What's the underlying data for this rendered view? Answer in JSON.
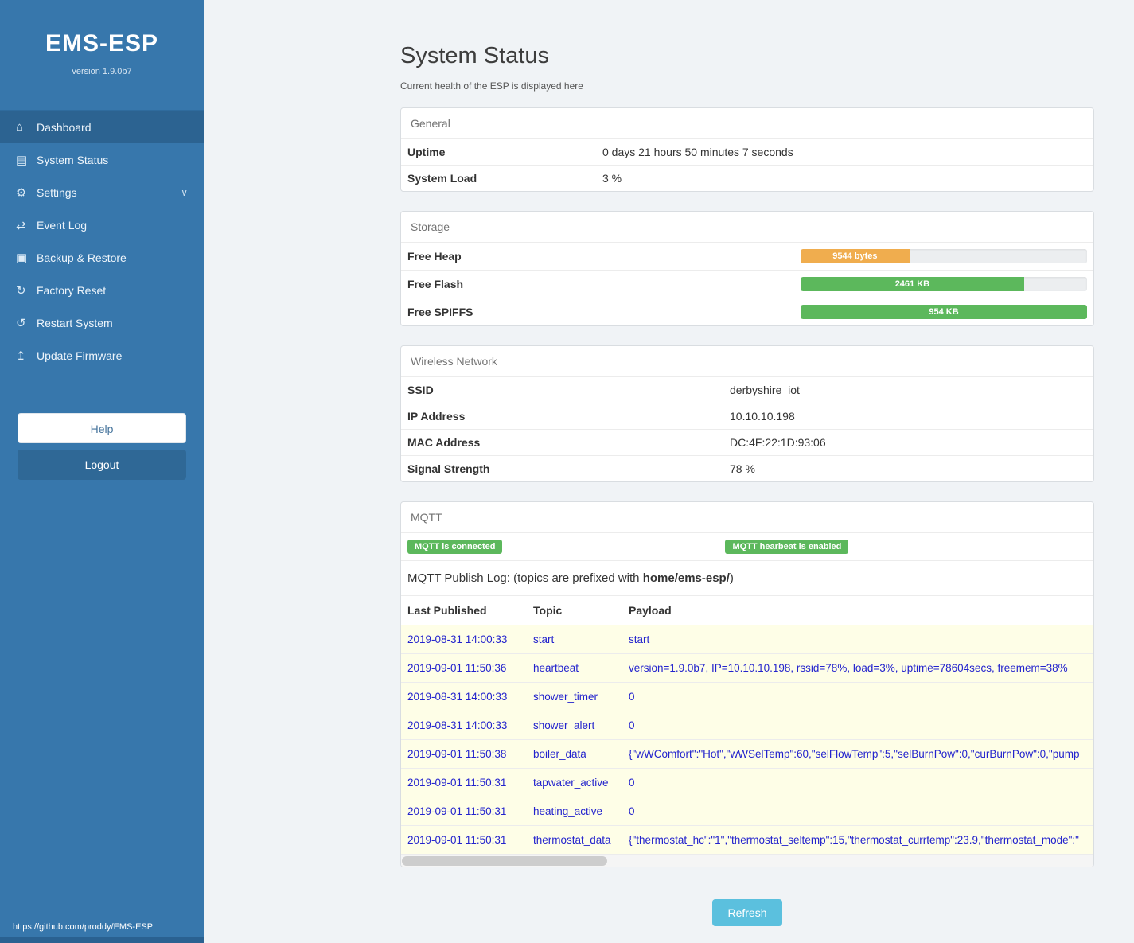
{
  "sidebar": {
    "title": "EMS-ESP",
    "version": "version 1.9.0b7",
    "items": [
      {
        "label": "Dashboard",
        "icon": "⌂",
        "active": true
      },
      {
        "label": "System Status",
        "icon": "▤",
        "active": false
      },
      {
        "label": "Settings",
        "icon": "⚙",
        "chevron": "∨",
        "active": false
      },
      {
        "label": "Event Log",
        "icon": "⇄",
        "active": false
      },
      {
        "label": "Backup & Restore",
        "icon": "▣",
        "active": false
      },
      {
        "label": "Factory Reset",
        "icon": "↻",
        "active": false
      },
      {
        "label": "Restart System",
        "icon": "↺",
        "active": false
      },
      {
        "label": "Update Firmware",
        "icon": "↥",
        "active": false
      }
    ],
    "help_label": "Help",
    "logout_label": "Logout",
    "footer_link": "https://github.com/proddy/EMS-ESP"
  },
  "page": {
    "title": "System Status",
    "subtitle": "Current health of the ESP is displayed here",
    "refresh_label": "Refresh"
  },
  "general": {
    "heading": "General",
    "rows": [
      {
        "label": "Uptime",
        "value": "0 days 21 hours 50 minutes 7 seconds"
      },
      {
        "label": "System Load",
        "value": "3 %"
      }
    ]
  },
  "storage": {
    "heading": "Storage",
    "bars": [
      {
        "label": "Free Heap",
        "value": "9544 bytes",
        "percent": 38,
        "color": "#f0ad4e"
      },
      {
        "label": "Free Flash",
        "value": "2461 KB",
        "percent": 78,
        "color": "#5cb85c"
      },
      {
        "label": "Free SPIFFS",
        "value": "954 KB",
        "percent": 100,
        "color": "#5cb85c"
      }
    ]
  },
  "wireless": {
    "heading": "Wireless Network",
    "rows": [
      {
        "label": "SSID",
        "value": "derbyshire_iot"
      },
      {
        "label": "IP Address",
        "value": "10.10.10.198"
      },
      {
        "label": "MAC Address",
        "value": "DC:4F:22:1D:93:06"
      },
      {
        "label": "Signal Strength",
        "value": "78 %"
      }
    ]
  },
  "mqtt": {
    "heading": "MQTT",
    "badges": [
      "MQTT is connected",
      "MQTT hearbeat is enabled"
    ],
    "log_title_prefix": "MQTT Publish Log: (topics are prefixed with ",
    "log_title_bold": "home/ems-esp/",
    "log_title_suffix": ")",
    "columns": [
      "Last Published",
      "Topic",
      "Payload"
    ],
    "rows": [
      {
        "published": "2019-08-31 14:00:33",
        "topic": "start",
        "payload": "start"
      },
      {
        "published": "2019-09-01 11:50:36",
        "topic": "heartbeat",
        "payload": "version=1.9.0b7, IP=10.10.10.198, rssid=78%, load=3%, uptime=78604secs, freemem=38%"
      },
      {
        "published": "2019-08-31 14:00:33",
        "topic": "shower_timer",
        "payload": "0"
      },
      {
        "published": "2019-08-31 14:00:33",
        "topic": "shower_alert",
        "payload": "0"
      },
      {
        "published": "2019-09-01 11:50:38",
        "topic": "boiler_data",
        "payload": "{\"wWComfort\":\"Hot\",\"wWSelTemp\":60,\"selFlowTemp\":5,\"selBurnPow\":0,\"curBurnPow\":0,\"pump"
      },
      {
        "published": "2019-09-01 11:50:31",
        "topic": "tapwater_active",
        "payload": "0"
      },
      {
        "published": "2019-09-01 11:50:31",
        "topic": "heating_active",
        "payload": "0"
      },
      {
        "published": "2019-09-01 11:50:31",
        "topic": "thermostat_data",
        "payload": "{\"thermostat_hc\":\"1\",\"thermostat_seltemp\":15,\"thermostat_currtemp\":23.9,\"thermostat_mode\":\""
      }
    ]
  },
  "colors": {
    "sidebar": "#3777ac",
    "active_item": "#2c6391",
    "badge_green": "#5cb85c",
    "bar_orange": "#f0ad4e",
    "bar_green": "#5cb85c",
    "refresh_blue": "#5bc0de",
    "log_row_bg": "#fefee7",
    "log_text_blue": "#2323cd"
  }
}
